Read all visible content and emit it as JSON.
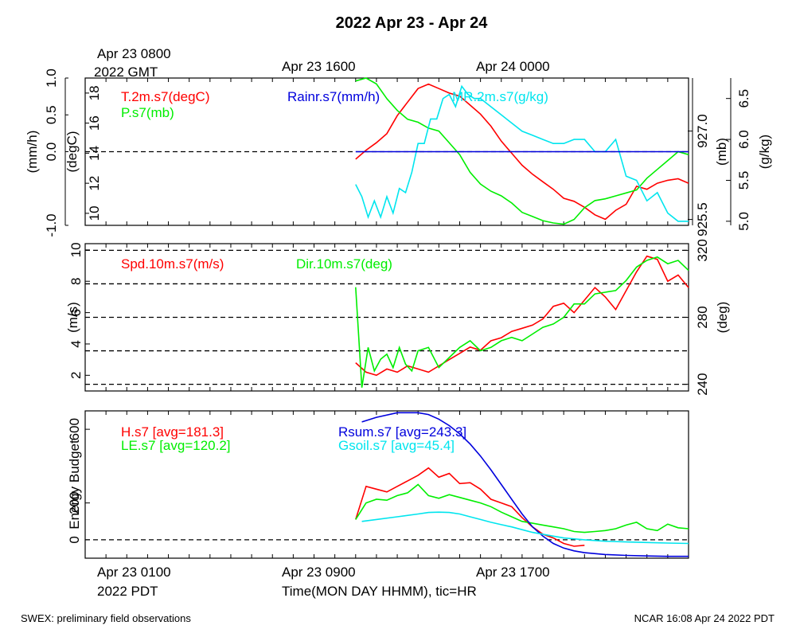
{
  "title": "2022 Apr 23 - Apr 24",
  "top_time_labels": [
    "Apr 23 0800",
    "2022 GMT",
    "Apr 23 1600",
    "Apr 24 0000"
  ],
  "bottom_time_labels": [
    "Apr 23 0100",
    "2022 PDT",
    "Apr 23 0900",
    "Apr 23 1700"
  ],
  "xlabel": "Time(MON DAY HHMM), tic=HR",
  "footer_left": "SWEX: preliminary field observations",
  "footer_right": "NCAR 16:08 Apr 24 2022 PDT",
  "colors": {
    "red": "#ff0000",
    "green": "#00ee00",
    "blue": "#0000dd",
    "cyan": "#00e5ee",
    "black": "#000000"
  },
  "chart_data": [
    {
      "type": "line",
      "panel": "top",
      "x_unit": "hours since Apr 23 0000 PDT",
      "xlim": [
        0,
        29
      ],
      "axes": {
        "rain": {
          "label": "(mm/h)",
          "ylim": [
            -1.0,
            1.0
          ],
          "ticks": [
            "-1.0",
            "0.0",
            "0.5",
            "1.0"
          ],
          "tick_values": [
            -1.0,
            0.0,
            0.5,
            1.0
          ]
        },
        "temp": {
          "label": "(degC)",
          "ylim": [
            9.2,
            19.0
          ],
          "ticks": [
            "10",
            "12",
            "14",
            "16",
            "18"
          ],
          "tick_values": [
            10,
            12,
            14,
            16,
            18
          ]
        },
        "pres": {
          "label": "(mb)",
          "ylim": [
            925.4,
            927.9
          ],
          "ticks": [
            "925.5",
            "927.0"
          ],
          "tick_values": [
            925.5,
            927.0
          ]
        },
        "mr": {
          "label": "(g/kg)",
          "ylim": [
            4.95,
            6.75
          ],
          "ticks": [
            "5.0",
            "5.5",
            "6.0",
            "6.5"
          ],
          "tick_values": [
            5.0,
            5.5,
            6.0,
            6.5
          ]
        }
      },
      "series": [
        {
          "name": "T.2m.s7(degC)",
          "axis": "temp",
          "color": "#ff0000",
          "x": [
            13.0,
            13.5,
            14.0,
            14.5,
            15.0,
            15.5,
            16.0,
            16.5,
            17.0,
            17.5,
            18.0,
            18.5,
            19.0,
            19.5,
            20.0,
            20.5,
            21.0,
            21.5,
            22.0,
            22.5,
            23.0,
            23.5,
            24.0,
            24.5,
            25.0,
            25.5,
            26.0,
            26.5,
            27.0,
            27.5,
            28.0,
            28.5,
            29.0
          ],
          "y": [
            13.6,
            14.2,
            14.7,
            15.3,
            16.5,
            17.4,
            18.3,
            18.6,
            18.3,
            18.0,
            17.8,
            17.2,
            16.6,
            15.8,
            14.8,
            14.0,
            13.2,
            12.6,
            12.1,
            11.6,
            11.0,
            10.8,
            10.4,
            9.9,
            9.6,
            10.2,
            10.6,
            11.8,
            11.6,
            12.0,
            12.2,
            12.3,
            12.0
          ]
        },
        {
          "name": "P.s7(mb)",
          "axis": "pres",
          "color": "#00ee00",
          "x": [
            13.0,
            13.5,
            14.0,
            14.5,
            15.0,
            15.5,
            16.0,
            16.5,
            17.0,
            17.5,
            18.0,
            18.5,
            19.0,
            19.5,
            20.0,
            20.5,
            21.0,
            21.5,
            22.0,
            22.5,
            23.0,
            23.5,
            24.0,
            24.5,
            25.0,
            25.5,
            26.0,
            26.5,
            27.0,
            27.5,
            28.0,
            28.5,
            29.0
          ],
          "y": [
            927.85,
            927.9,
            927.8,
            927.55,
            927.35,
            927.2,
            927.15,
            927.05,
            927.0,
            926.8,
            926.6,
            926.3,
            926.1,
            925.98,
            925.9,
            925.78,
            925.62,
            925.55,
            925.48,
            925.44,
            925.42,
            925.5,
            925.7,
            925.82,
            925.85,
            925.9,
            925.95,
            926.0,
            926.2,
            926.35,
            926.5,
            926.65,
            926.6
          ]
        },
        {
          "name": "MR.2m.s7(g/kg)",
          "axis": "mr",
          "color": "#00e5ee",
          "x": [
            13.0,
            13.3,
            13.6,
            13.9,
            14.2,
            14.5,
            14.8,
            15.1,
            15.4,
            15.7,
            16.0,
            16.3,
            16.6,
            16.9,
            17.2,
            17.5,
            17.8,
            18.1,
            18.4,
            18.7,
            19.0,
            19.5,
            20.0,
            20.5,
            21.0,
            21.5,
            22.0,
            22.5,
            23.0,
            23.5,
            24.0,
            24.5,
            25.0,
            25.5,
            26.0,
            26.5,
            27.0,
            27.5,
            28.0,
            28.5,
            29.0
          ],
          "y": [
            5.45,
            5.3,
            5.05,
            5.25,
            5.05,
            5.3,
            5.1,
            5.4,
            5.35,
            5.6,
            5.95,
            5.95,
            6.25,
            6.25,
            6.5,
            6.55,
            6.4,
            6.65,
            6.55,
            6.5,
            6.5,
            6.4,
            6.3,
            6.2,
            6.1,
            6.05,
            6.0,
            5.95,
            5.95,
            6.0,
            6.0,
            5.85,
            5.85,
            6.0,
            5.55,
            5.5,
            5.25,
            5.35,
            5.1,
            5.0,
            5.0
          ]
        },
        {
          "name": "Rainr.s7(mm/h)",
          "axis": "rain",
          "color": "#0000dd",
          "x": [
            13.0,
            29.0
          ],
          "y": [
            0.0,
            0.0
          ]
        }
      ]
    },
    {
      "type": "line",
      "panel": "middle",
      "x_unit": "hours since Apr 23 0000 PDT",
      "xlim": [
        0,
        29
      ],
      "axes": {
        "spd": {
          "label": "(m/s)",
          "ylim": [
            1.0,
            10.4
          ],
          "ticks": [
            "2",
            "4",
            "6",
            "8",
            "10"
          ],
          "tick_values": [
            2,
            4,
            6,
            8,
            10
          ]
        },
        "dir": {
          "label": "(deg)",
          "ylim": [
            236,
            324
          ],
          "ticks": [
            "240",
            "280",
            "320"
          ],
          "tick_values": [
            240,
            280,
            320
          ]
        }
      },
      "series": [
        {
          "name": "Spd.10m.s7(m/s)",
          "axis": "spd",
          "color": "#ff0000",
          "x": [
            13.0,
            13.5,
            14.0,
            14.5,
            15.0,
            15.5,
            16.0,
            16.5,
            17.0,
            17.5,
            18.0,
            18.5,
            19.0,
            19.5,
            20.0,
            20.5,
            21.0,
            21.5,
            22.0,
            22.5,
            23.0,
            23.5,
            24.0,
            24.5,
            25.0,
            25.5,
            26.0,
            26.5,
            27.0,
            27.5,
            28.0,
            28.5,
            29.0
          ],
          "y": [
            2.8,
            2.2,
            2.0,
            2.4,
            2.2,
            2.6,
            2.4,
            2.2,
            2.6,
            3.0,
            3.4,
            3.8,
            3.6,
            4.2,
            4.4,
            4.8,
            5.0,
            5.2,
            5.6,
            6.4,
            6.6,
            6.0,
            6.8,
            7.6,
            7.0,
            6.2,
            7.4,
            8.6,
            9.6,
            9.4,
            8.0,
            8.4,
            7.6
          ]
        },
        {
          "name": "Dir.10m.s7(deg)",
          "axis": "dir",
          "color": "#00ee00",
          "x": [
            13.0,
            13.3,
            13.6,
            13.9,
            14.2,
            14.5,
            14.8,
            15.1,
            15.4,
            15.7,
            16.0,
            16.5,
            17.0,
            17.5,
            18.0,
            18.5,
            19.0,
            19.5,
            20.0,
            20.5,
            21.0,
            21.5,
            22.0,
            22.5,
            23.0,
            23.5,
            24.0,
            24.5,
            25.0,
            25.5,
            26.0,
            26.5,
            27.0,
            27.5,
            28.0,
            28.5,
            29.0
          ],
          "y": [
            298,
            238,
            262,
            248,
            255,
            258,
            250,
            262,
            252,
            248,
            260,
            262,
            250,
            256,
            262,
            266,
            260,
            262,
            266,
            268,
            266,
            270,
            274,
            276,
            280,
            288,
            288,
            294,
            295,
            296,
            302,
            310,
            314,
            316,
            312,
            314,
            308
          ]
        }
      ]
    },
    {
      "type": "line",
      "panel": "bottom",
      "x_unit": "hours since Apr 23 0000 PDT",
      "xlim": [
        0,
        29
      ],
      "ylabel": "Energy Budget",
      "ylim": [
        -100,
        700
      ],
      "ticks": [
        "0",
        "200",
        "600"
      ],
      "tick_values": [
        0,
        200,
        600
      ],
      "series": [
        {
          "name": "H.s7 [avg=181.3]",
          "color": "#ff0000",
          "x": [
            13.0,
            13.5,
            14.0,
            14.5,
            15.0,
            15.5,
            16.0,
            16.5,
            17.0,
            17.5,
            18.0,
            18.5,
            19.0,
            19.5,
            20.0,
            20.5,
            21.0,
            21.5,
            22.0,
            22.5,
            23.0,
            23.5,
            24.0
          ],
          "y": [
            110,
            290,
            275,
            260,
            290,
            320,
            350,
            390,
            340,
            360,
            305,
            310,
            275,
            220,
            200,
            180,
            120,
            70,
            30,
            10,
            -20,
            -35,
            -30
          ]
        },
        {
          "name": "LE.s7 [avg=120.2]",
          "color": "#00ee00",
          "x": [
            13.0,
            13.5,
            14.0,
            14.5,
            15.0,
            15.5,
            16.0,
            16.5,
            17.0,
            17.5,
            18.0,
            18.5,
            19.0,
            19.5,
            20.0,
            20.5,
            21.0,
            21.5,
            22.0,
            22.5,
            23.0,
            23.5,
            24.0,
            24.5,
            25.0,
            25.5,
            26.0,
            26.5,
            27.0,
            27.5,
            28.0,
            28.5,
            29.0
          ],
          "y": [
            110,
            200,
            220,
            215,
            240,
            255,
            300,
            240,
            225,
            245,
            230,
            215,
            200,
            180,
            150,
            125,
            100,
            90,
            80,
            70,
            60,
            45,
            40,
            45,
            50,
            60,
            80,
            95,
            60,
            50,
            85,
            65,
            60
          ]
        },
        {
          "name": "Rsum.s7 [avg=243.3]",
          "color": "#0000dd",
          "x": [
            13.3,
            14.0,
            15.0,
            16.0,
            16.5,
            17.0,
            17.5,
            18.0,
            18.5,
            19.0,
            19.5,
            20.0,
            20.5,
            21.0,
            21.5,
            22.0,
            22.5,
            23.0,
            23.5,
            24.0,
            25.0,
            26.0,
            27.0,
            28.0,
            29.0
          ],
          "y": [
            640,
            665,
            690,
            690,
            680,
            655,
            620,
            575,
            520,
            455,
            380,
            300,
            220,
            140,
            70,
            20,
            -20,
            -45,
            -60,
            -70,
            -80,
            -85,
            -88,
            -90,
            -90
          ]
        },
        {
          "name": "Gsoil.s7 [avg=45.4]",
          "color": "#00e5ee",
          "x": [
            13.3,
            14.0,
            15.0,
            16.0,
            16.5,
            17.0,
            17.5,
            18.0,
            18.5,
            19.0,
            19.5,
            20.0,
            20.5,
            21.0,
            21.5,
            22.0,
            22.5,
            23.0,
            24.0,
            25.0,
            26.0,
            27.0,
            28.0,
            29.0
          ],
          "y": [
            100,
            110,
            125,
            140,
            148,
            150,
            148,
            140,
            125,
            110,
            95,
            82,
            70,
            55,
            40,
            30,
            20,
            10,
            0,
            -8,
            -12,
            -15,
            -18,
            -20
          ]
        }
      ]
    }
  ]
}
